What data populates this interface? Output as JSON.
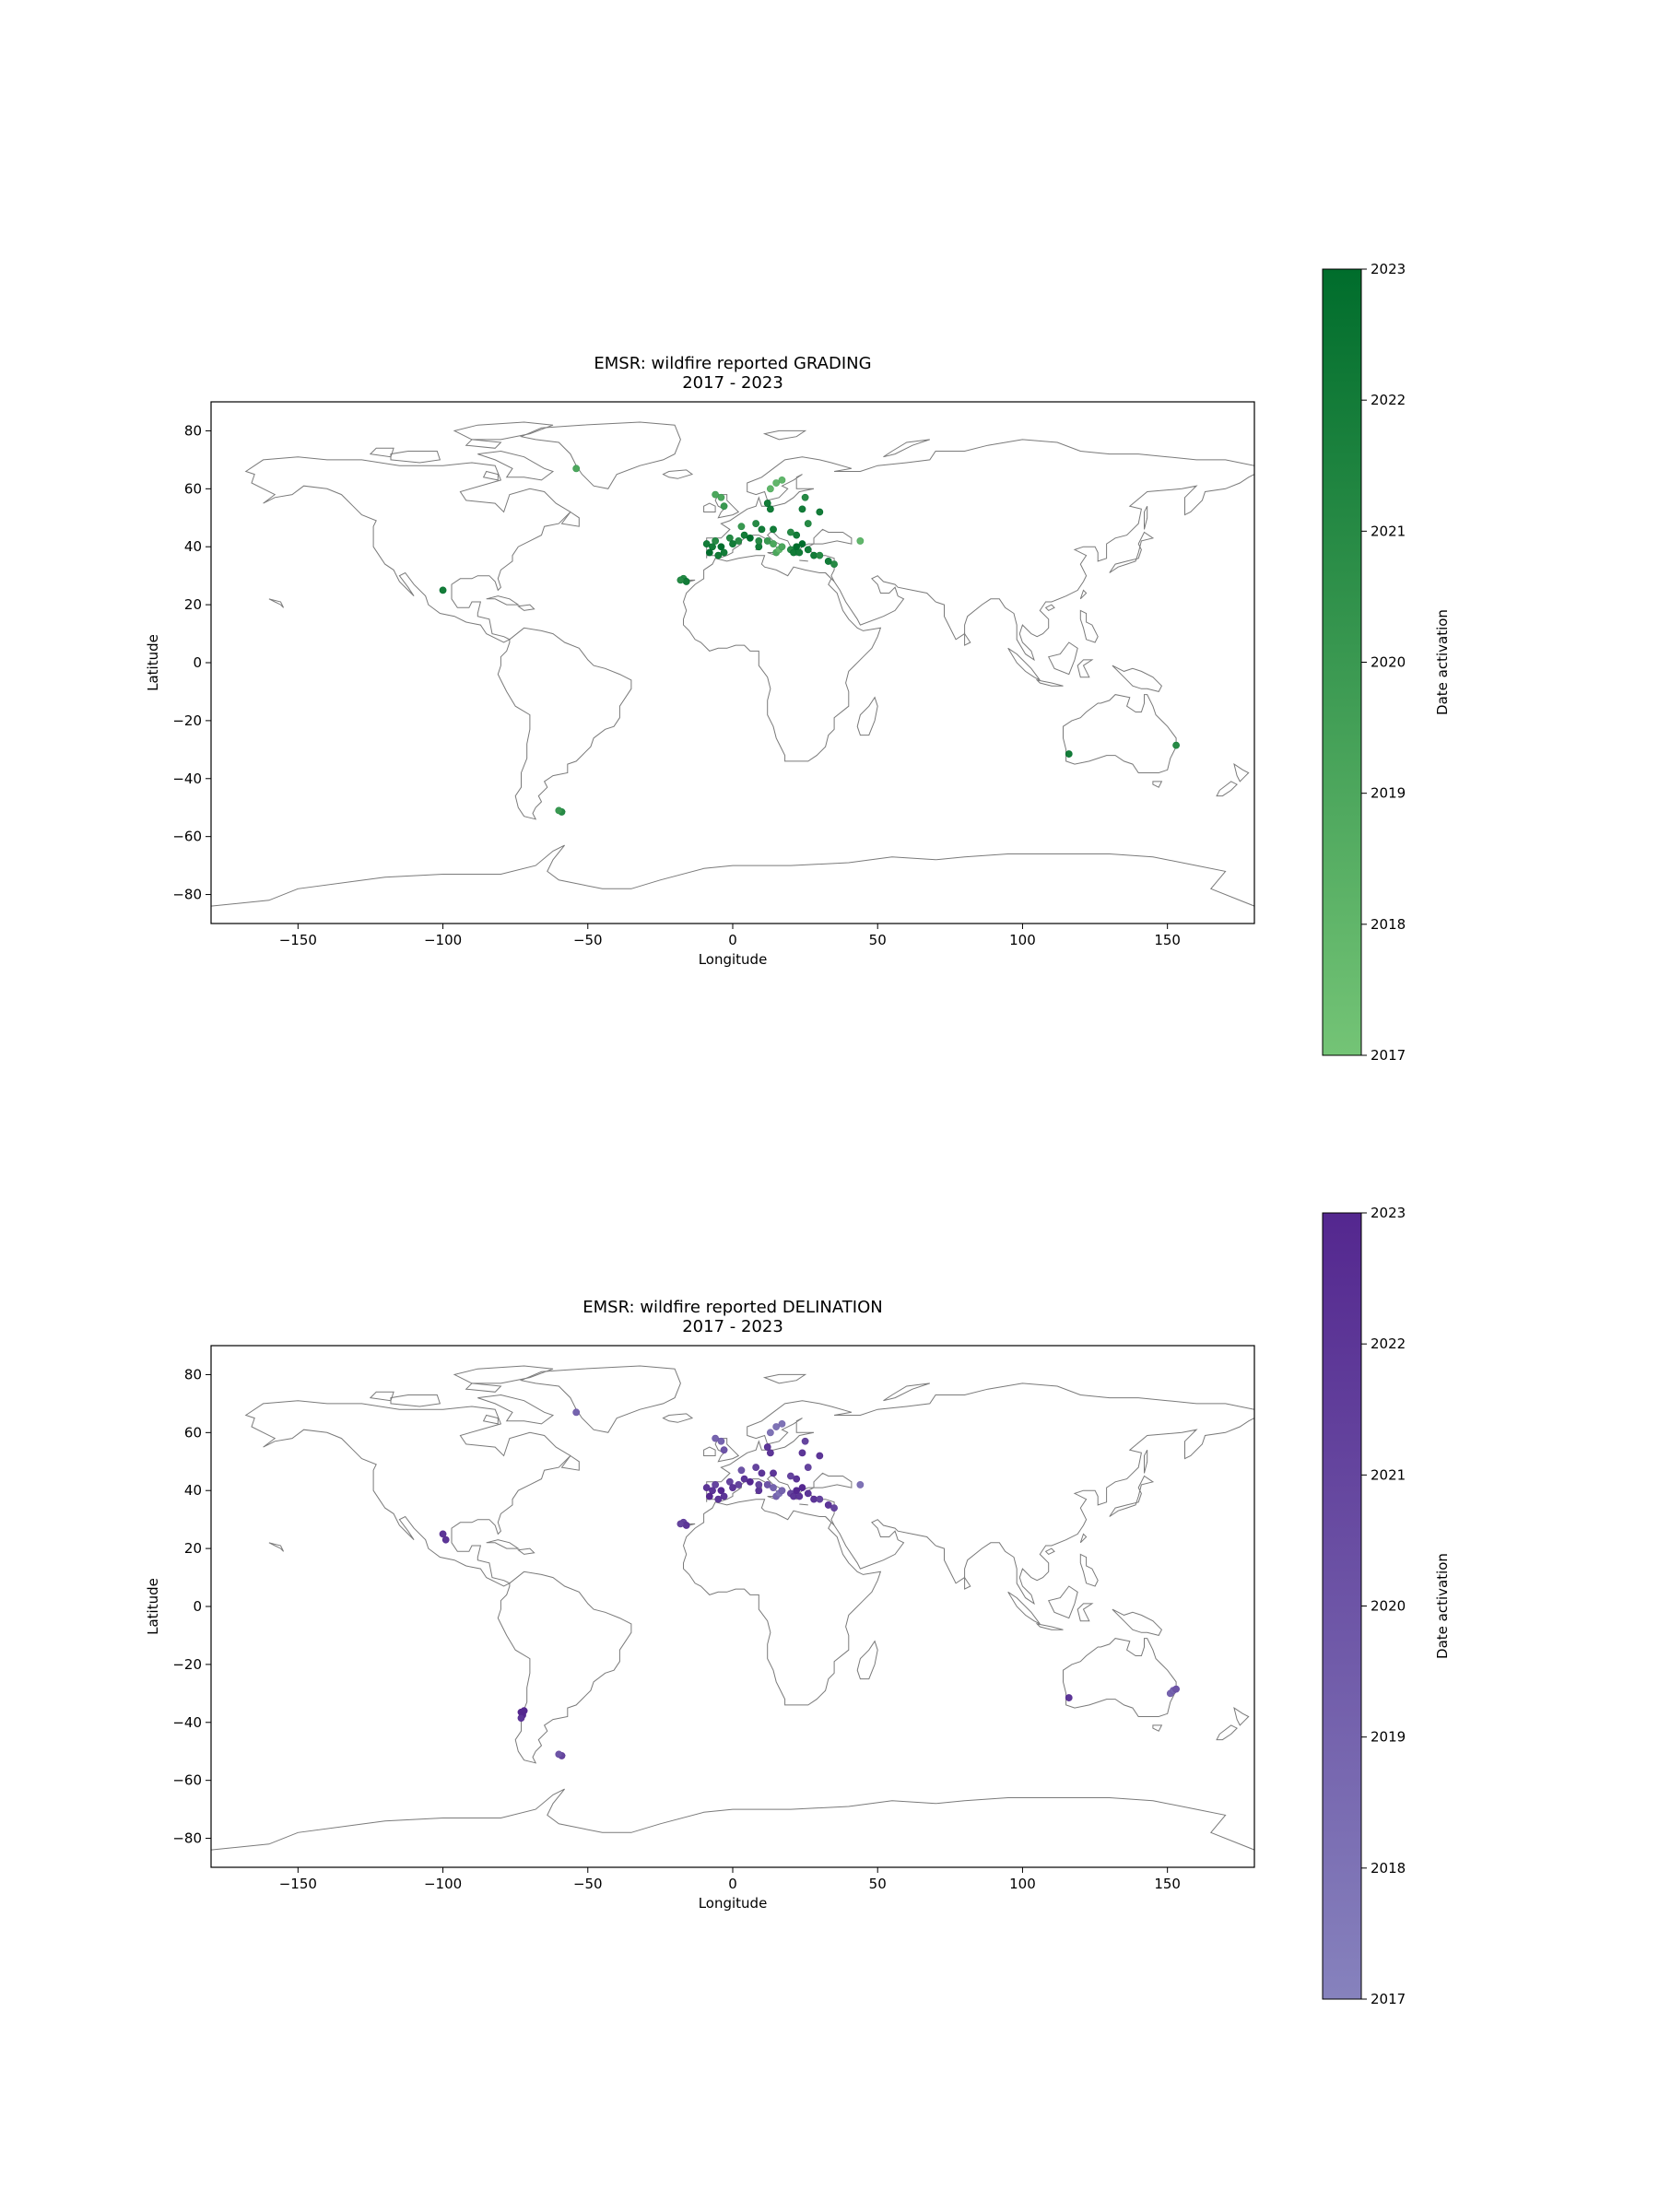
{
  "chart_data": [
    {
      "type": "scatter",
      "title": "EMSR: wildfire reported GRADING",
      "subtitle": "2017 - 2023",
      "xlabel": "Longitude",
      "ylabel": "Latitude",
      "xlim": [
        -180,
        180
      ],
      "ylim": [
        -90,
        90
      ],
      "xticks": [
        -150,
        -100,
        -50,
        0,
        50,
        100,
        150
      ],
      "xtick_labels": [
        "−150",
        "−100",
        "−50",
        "0",
        "50",
        "100",
        "150"
      ],
      "yticks": [
        80,
        60,
        40,
        20,
        0,
        -20,
        -40,
        -60,
        -80
      ],
      "ytick_labels": [
        "80",
        "60",
        "40",
        "20",
        "0",
        "−20",
        "−40",
        "−60",
        "−80"
      ],
      "grid": false,
      "basemap": "world coastlines (grey outline)",
      "colorbar": {
        "label": "Date activation",
        "range": [
          2017,
          2023
        ],
        "ticks": [
          "2017",
          "2018",
          "2019",
          "2020",
          "2021",
          "2022",
          "2023"
        ],
        "color_low": "#74c476",
        "color_high": "#006d2c"
      },
      "points": [
        {
          "lon": -9,
          "lat": 41,
          "year": 2022
        },
        {
          "lon": -7,
          "lat": 40,
          "year": 2022
        },
        {
          "lon": -6,
          "lat": 42,
          "year": 2021
        },
        {
          "lon": -4,
          "lat": 40,
          "year": 2023
        },
        {
          "lon": -3,
          "lat": 38,
          "year": 2022
        },
        {
          "lon": -1,
          "lat": 43,
          "year": 2021
        },
        {
          "lon": -5,
          "lat": 37,
          "year": 2022
        },
        {
          "lon": -8,
          "lat": 38,
          "year": 2023
        },
        {
          "lon": 0,
          "lat": 41,
          "year": 2022
        },
        {
          "lon": 2,
          "lat": 42,
          "year": 2021
        },
        {
          "lon": 4,
          "lat": 44,
          "year": 2022
        },
        {
          "lon": 6,
          "lat": 43,
          "year": 2023
        },
        {
          "lon": 9,
          "lat": 40,
          "year": 2022
        },
        {
          "lon": 9,
          "lat": 42,
          "year": 2021
        },
        {
          "lon": 12,
          "lat": 42,
          "year": 2020
        },
        {
          "lon": 14,
          "lat": 41,
          "year": 2019
        },
        {
          "lon": 15,
          "lat": 38,
          "year": 2019
        },
        {
          "lon": 16,
          "lat": 39,
          "year": 2018
        },
        {
          "lon": 17,
          "lat": 40,
          "year": 2019
        },
        {
          "lon": 20,
          "lat": 39,
          "year": 2021
        },
        {
          "lon": 21,
          "lat": 38,
          "year": 2022
        },
        {
          "lon": 22,
          "lat": 40,
          "year": 2023
        },
        {
          "lon": 23,
          "lat": 38,
          "year": 2022
        },
        {
          "lon": 24,
          "lat": 41,
          "year": 2023
        },
        {
          "lon": 26,
          "lat": 39,
          "year": 2022
        },
        {
          "lon": 28,
          "lat": 37,
          "year": 2022
        },
        {
          "lon": 30,
          "lat": 37,
          "year": 2021
        },
        {
          "lon": 33,
          "lat": 35,
          "year": 2022
        },
        {
          "lon": 35,
          "lat": 34,
          "year": 2021
        },
        {
          "lon": 44,
          "lat": 42,
          "year": 2018
        },
        {
          "lon": 22,
          "lat": 44,
          "year": 2022
        },
        {
          "lon": 20,
          "lat": 45,
          "year": 2021
        },
        {
          "lon": 10,
          "lat": 46,
          "year": 2022
        },
        {
          "lon": 14,
          "lat": 46,
          "year": 2022
        },
        {
          "lon": 8,
          "lat": 48,
          "year": 2021
        },
        {
          "lon": 3,
          "lat": 47,
          "year": 2020
        },
        {
          "lon": -3,
          "lat": 54,
          "year": 2020
        },
        {
          "lon": -6,
          "lat": 58,
          "year": 2019
        },
        {
          "lon": -4,
          "lat": 57,
          "year": 2019
        },
        {
          "lon": 12,
          "lat": 55,
          "year": 2022
        },
        {
          "lon": 13,
          "lat": 53,
          "year": 2022
        },
        {
          "lon": 15,
          "lat": 62,
          "year": 2018
        },
        {
          "lon": 17,
          "lat": 63,
          "year": 2018
        },
        {
          "lon": 13,
          "lat": 60,
          "year": 2018
        },
        {
          "lon": 25,
          "lat": 57,
          "year": 2021
        },
        {
          "lon": 24,
          "lat": 53,
          "year": 2022
        },
        {
          "lon": 30,
          "lat": 52,
          "year": 2022
        },
        {
          "lon": 26,
          "lat": 48,
          "year": 2021
        },
        {
          "lon": -17,
          "lat": 29,
          "year": 2021
        },
        {
          "lon": -16,
          "lat": 28,
          "year": 2022
        },
        {
          "lon": -18,
          "lat": 28.5,
          "year": 2021
        },
        {
          "lon": -100,
          "lat": 25,
          "year": 2022
        },
        {
          "lon": -54,
          "lat": 67,
          "year": 2019
        },
        {
          "lon": -59,
          "lat": -51.5,
          "year": 2021
        },
        {
          "lon": -60,
          "lat": -51,
          "year": 2020
        },
        {
          "lon": 116,
          "lat": -31.5,
          "year": 2022
        },
        {
          "lon": 153,
          "lat": -28.5,
          "year": 2021
        }
      ]
    },
    {
      "type": "scatter",
      "title": "EMSR: wildfire reported DELINATION",
      "subtitle": "2017 - 2023",
      "xlabel": "Longitude",
      "ylabel": "Latitude",
      "xlim": [
        -180,
        180
      ],
      "ylim": [
        -90,
        90
      ],
      "xticks": [
        -150,
        -100,
        -50,
        0,
        50,
        100,
        150
      ],
      "xtick_labels": [
        "−150",
        "−100",
        "−50",
        "0",
        "50",
        "100",
        "150"
      ],
      "yticks": [
        80,
        60,
        40,
        20,
        0,
        -20,
        -40,
        -60,
        -80
      ],
      "ytick_labels": [
        "80",
        "60",
        "40",
        "20",
        "0",
        "−20",
        "−40",
        "−60",
        "−80"
      ],
      "grid": false,
      "basemap": "world coastlines (grey outline)",
      "colorbar": {
        "label": "Date activation",
        "range": [
          2017,
          2023
        ],
        "ticks": [
          "2017",
          "2018",
          "2019",
          "2020",
          "2021",
          "2022",
          "2023"
        ],
        "color_low": "#8682bd",
        "color_high": "#54278f"
      },
      "points": [
        {
          "lon": -9,
          "lat": 41,
          "year": 2022
        },
        {
          "lon": -7,
          "lat": 40,
          "year": 2022
        },
        {
          "lon": -6,
          "lat": 42,
          "year": 2021
        },
        {
          "lon": -4,
          "lat": 40,
          "year": 2023
        },
        {
          "lon": -3,
          "lat": 38,
          "year": 2022
        },
        {
          "lon": -1,
          "lat": 43,
          "year": 2021
        },
        {
          "lon": -5,
          "lat": 37,
          "year": 2022
        },
        {
          "lon": -8,
          "lat": 38,
          "year": 2023
        },
        {
          "lon": 0,
          "lat": 41,
          "year": 2022
        },
        {
          "lon": 2,
          "lat": 42,
          "year": 2021
        },
        {
          "lon": 4,
          "lat": 44,
          "year": 2022
        },
        {
          "lon": 6,
          "lat": 43,
          "year": 2023
        },
        {
          "lon": 9,
          "lat": 40,
          "year": 2022
        },
        {
          "lon": 9,
          "lat": 42,
          "year": 2021
        },
        {
          "lon": 12,
          "lat": 42,
          "year": 2020
        },
        {
          "lon": 14,
          "lat": 41,
          "year": 2019
        },
        {
          "lon": 15,
          "lat": 38,
          "year": 2019
        },
        {
          "lon": 16,
          "lat": 39,
          "year": 2018
        },
        {
          "lon": 17,
          "lat": 40,
          "year": 2019
        },
        {
          "lon": 20,
          "lat": 39,
          "year": 2021
        },
        {
          "lon": 21,
          "lat": 38,
          "year": 2022
        },
        {
          "lon": 22,
          "lat": 40,
          "year": 2023
        },
        {
          "lon": 23,
          "lat": 38,
          "year": 2022
        },
        {
          "lon": 24,
          "lat": 41,
          "year": 2023
        },
        {
          "lon": 26,
          "lat": 39,
          "year": 2022
        },
        {
          "lon": 28,
          "lat": 37,
          "year": 2022
        },
        {
          "lon": 30,
          "lat": 37,
          "year": 2021
        },
        {
          "lon": 33,
          "lat": 35,
          "year": 2022
        },
        {
          "lon": 35,
          "lat": 34,
          "year": 2021
        },
        {
          "lon": 44,
          "lat": 42,
          "year": 2018
        },
        {
          "lon": 22,
          "lat": 44,
          "year": 2022
        },
        {
          "lon": 20,
          "lat": 45,
          "year": 2021
        },
        {
          "lon": 10,
          "lat": 46,
          "year": 2022
        },
        {
          "lon": 14,
          "lat": 46,
          "year": 2022
        },
        {
          "lon": 8,
          "lat": 48,
          "year": 2021
        },
        {
          "lon": 3,
          "lat": 47,
          "year": 2020
        },
        {
          "lon": -3,
          "lat": 54,
          "year": 2020
        },
        {
          "lon": -6,
          "lat": 58,
          "year": 2019
        },
        {
          "lon": -4,
          "lat": 57,
          "year": 2019
        },
        {
          "lon": 12,
          "lat": 55,
          "year": 2022
        },
        {
          "lon": 13,
          "lat": 53,
          "year": 2022
        },
        {
          "lon": 15,
          "lat": 62,
          "year": 2018
        },
        {
          "lon": 17,
          "lat": 63,
          "year": 2018
        },
        {
          "lon": 13,
          "lat": 60,
          "year": 2018
        },
        {
          "lon": 25,
          "lat": 57,
          "year": 2021
        },
        {
          "lon": 24,
          "lat": 53,
          "year": 2022
        },
        {
          "lon": 30,
          "lat": 52,
          "year": 2022
        },
        {
          "lon": 26,
          "lat": 48,
          "year": 2021
        },
        {
          "lon": -17,
          "lat": 29,
          "year": 2021
        },
        {
          "lon": -16,
          "lat": 28,
          "year": 2022
        },
        {
          "lon": -18,
          "lat": 28.5,
          "year": 2021
        },
        {
          "lon": -100,
          "lat": 25,
          "year": 2022
        },
        {
          "lon": -99,
          "lat": 23,
          "year": 2022
        },
        {
          "lon": -54,
          "lat": 67,
          "year": 2019
        },
        {
          "lon": -73,
          "lat": -36.5,
          "year": 2023
        },
        {
          "lon": -72.5,
          "lat": -37.5,
          "year": 2023
        },
        {
          "lon": -73,
          "lat": -38.5,
          "year": 2022
        },
        {
          "lon": -72,
          "lat": -36,
          "year": 2023
        },
        {
          "lon": -59,
          "lat": -51.5,
          "year": 2021
        },
        {
          "lon": -60,
          "lat": -51,
          "year": 2020
        },
        {
          "lon": 116,
          "lat": -31.5,
          "year": 2022
        },
        {
          "lon": 151,
          "lat": -30,
          "year": 2019
        },
        {
          "lon": 152,
          "lat": -29,
          "year": 2019
        },
        {
          "lon": 153,
          "lat": -28.5,
          "year": 2020
        }
      ]
    }
  ]
}
